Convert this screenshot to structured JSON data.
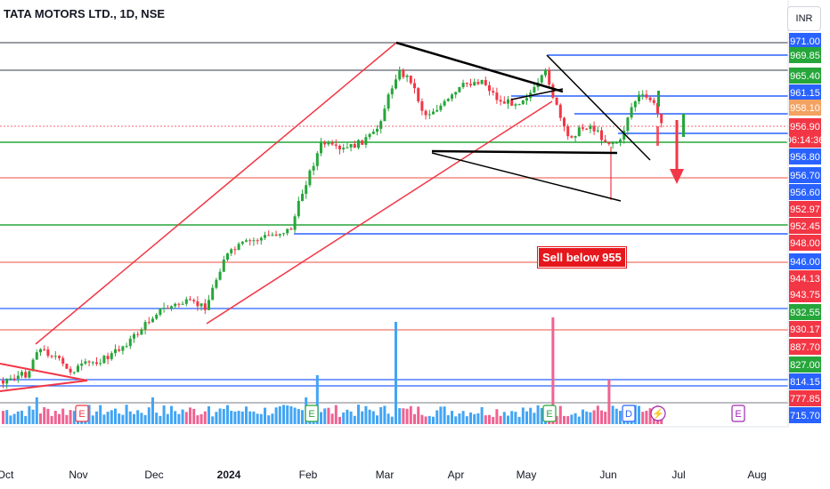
{
  "header": {
    "title": "TATA MOTORS LTD., 1D, NSE",
    "currency": "INR"
  },
  "annotation": {
    "sell_text": "Sell below 955"
  },
  "chart_data": {
    "type": "candlestick",
    "symbol": "TATA MOTORS LTD.",
    "interval": "1D",
    "exchange": "NSE",
    "x_labels": [
      "Oct",
      "Nov",
      "Dec",
      "2024",
      "Feb",
      "Mar",
      "Apr",
      "May",
      "Jun",
      "Jul",
      "Aug"
    ],
    "price_axis_labels": [
      {
        "value": "971.00",
        "color": "#2962ff"
      },
      {
        "value": "969.85",
        "color": "#26a63a"
      },
      {
        "value": "965.40",
        "color": "#26a63a"
      },
      {
        "value": "961.15",
        "color": "#2962ff"
      },
      {
        "value": "958.10",
        "color": "#f4a261"
      },
      {
        "value": "956.90",
        "color": "#f23645"
      },
      {
        "value": "06:14:36",
        "color": "#f23645"
      },
      {
        "value": "956.80",
        "color": "#2962ff"
      },
      {
        "value": "956.70",
        "color": "#2962ff"
      },
      {
        "value": "956.60",
        "color": "#2962ff"
      },
      {
        "value": "952.97",
        "color": "#f23645"
      },
      {
        "value": "952.45",
        "color": "#f23645"
      },
      {
        "value": "948.00",
        "color": "#f23645"
      },
      {
        "value": "946.00",
        "color": "#2962ff"
      },
      {
        "value": "944.13",
        "color": "#f23645"
      },
      {
        "value": "943.75",
        "color": "#f23645"
      },
      {
        "value": "932.55",
        "color": "#26a63a"
      },
      {
        "value": "930.17",
        "color": "#f23645"
      },
      {
        "value": "887.70",
        "color": "#f23645"
      },
      {
        "value": "827.00",
        "color": "#26a63a"
      },
      {
        "value": "814.15",
        "color": "#2962ff"
      },
      {
        "value": "777.85",
        "color": "#f23645"
      },
      {
        "value": "715.70",
        "color": "#2962ff"
      }
    ],
    "event_markers": [
      {
        "label": "E",
        "color": "#f23645"
      },
      {
        "label": "E",
        "color": "#26a63a"
      },
      {
        "label": "E",
        "color": "#26a63a"
      },
      {
        "label": "D",
        "color": "#2962ff"
      },
      {
        "label": "⚡",
        "color": "#9c27b0"
      },
      {
        "label": "E",
        "color": "#9c27b0"
      }
    ],
    "colors": {
      "up": "#26a63a",
      "down": "#f23645",
      "vol_up": "#42a5f5",
      "vol_down": "#f06292"
    }
  }
}
